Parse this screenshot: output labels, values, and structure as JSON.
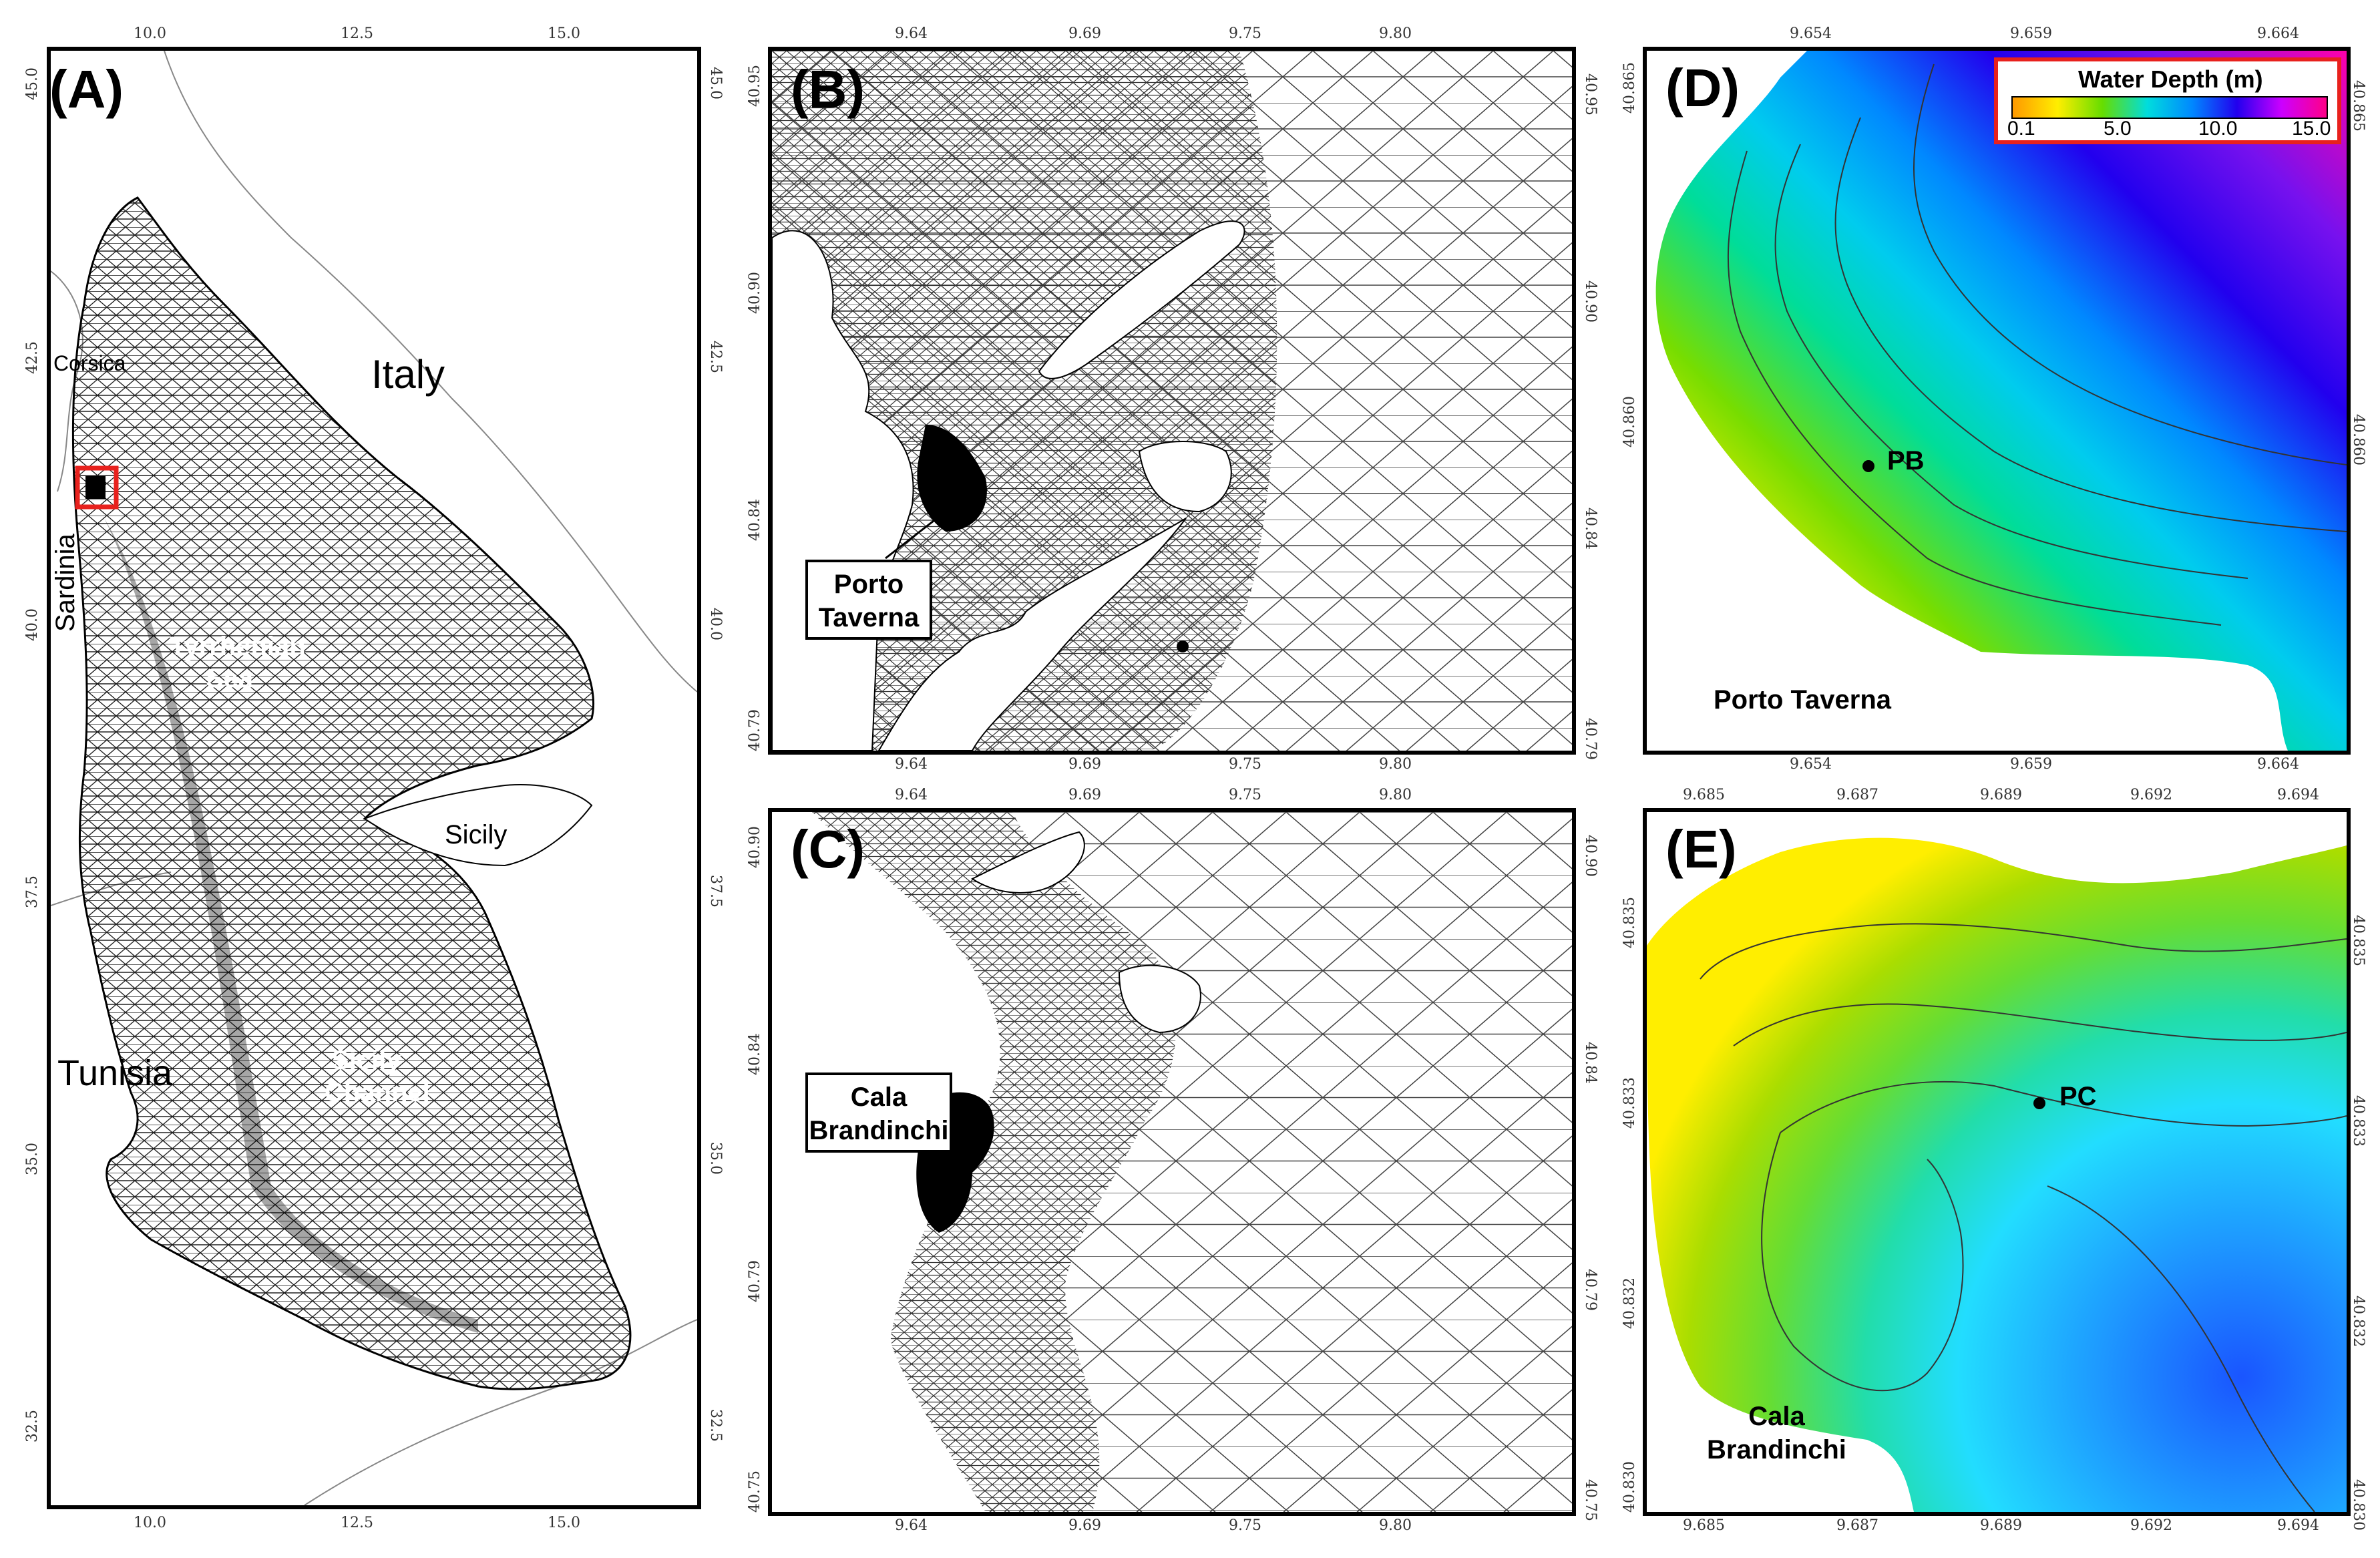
{
  "panels": {
    "A": {
      "label": "(A)",
      "x_ticks": [
        "10.0",
        "12.5",
        "15.0"
      ],
      "y_ticks": [
        "45.0",
        "42.5",
        "40.0",
        "37.5",
        "35.0",
        "32.5"
      ],
      "places": {
        "italy": "Italy",
        "corsica": "Corsica",
        "sardinia": "Sardinia",
        "tyrrhenian": "Tyrrhenian",
        "tyrrhenian2": "Sea",
        "sicily": "Sicily",
        "tunisia": "Tunisia",
        "channel": "Sicily",
        "channel2": "Channel"
      }
    },
    "B": {
      "label": "(B)",
      "x_ticks": [
        "9.64",
        "9.69",
        "9.75",
        "9.80"
      ],
      "y_ticks": [
        "40.95",
        "40.90",
        "40.84",
        "40.79"
      ],
      "callout_line1": "Porto",
      "callout_line2": "Taverna"
    },
    "C": {
      "label": "(C)",
      "x_ticks": [
        "9.64",
        "9.69",
        "9.75",
        "9.80"
      ],
      "y_ticks": [
        "40.90",
        "40.84",
        "40.79",
        "40.75"
      ],
      "callout_line1": "Cala",
      "callout_line2": "Brandinchi"
    },
    "D": {
      "label": "(D)",
      "x_ticks": [
        "9.654",
        "9.659",
        "9.664"
      ],
      "y_ticks": [
        "40.865",
        "40.860"
      ],
      "station": "PB",
      "place": "Porto Taverna",
      "colorbar": {
        "title": "Water Depth (m)",
        "ticks": [
          "0.1",
          "5.0",
          "10.0",
          "15.0"
        ],
        "colors": [
          "#ff9900",
          "#ffee00",
          "#66dd00",
          "#00dddd",
          "#0088ff",
          "#2200ee",
          "#cc00ff",
          "#ff0088"
        ]
      }
    },
    "E": {
      "label": "(E)",
      "x_ticks": [
        "9.685",
        "9.687",
        "9.689",
        "9.692",
        "9.694"
      ],
      "y_ticks": [
        "40.835",
        "40.833",
        "40.832",
        "40.830"
      ],
      "station": "PC",
      "place_line1": "Cala",
      "place_line2": "Brandinchi"
    }
  }
}
